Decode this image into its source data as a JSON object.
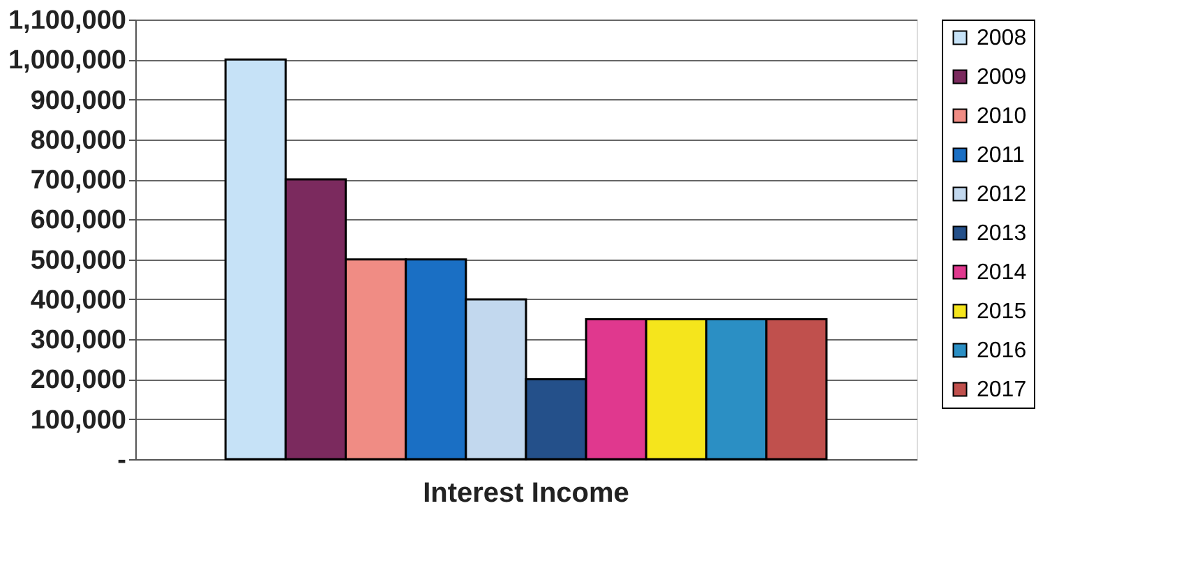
{
  "chart_data": {
    "type": "bar",
    "categories": [
      "Interest Income"
    ],
    "series": [
      {
        "name": "2008",
        "color": "#c6e2f7",
        "values": [
          1000000
        ]
      },
      {
        "name": "2009",
        "color": "#7b2a5e",
        "values": [
          700000
        ]
      },
      {
        "name": "2010",
        "color": "#f08c84",
        "values": [
          500000
        ]
      },
      {
        "name": "2011",
        "color": "#1a6fc4",
        "values": [
          500000
        ]
      },
      {
        "name": "2012",
        "color": "#c2d8ee",
        "values": [
          400000
        ]
      },
      {
        "name": "2013",
        "color": "#24508a",
        "values": [
          200000
        ]
      },
      {
        "name": "2014",
        "color": "#e0388e",
        "values": [
          350000
        ]
      },
      {
        "name": "2015",
        "color": "#f5e51c",
        "values": [
          350000
        ]
      },
      {
        "name": "2016",
        "color": "#2b8fc4",
        "values": [
          350000
        ]
      },
      {
        "name": "2017",
        "color": "#c0504d",
        "values": [
          350000
        ]
      }
    ],
    "ylim": [
      0,
      1100000
    ],
    "yticks": [
      {
        "value": 0,
        "label": "-"
      },
      {
        "value": 100000,
        "label": "100,000"
      },
      {
        "value": 200000,
        "label": "200,000"
      },
      {
        "value": 300000,
        "label": "300,000"
      },
      {
        "value": 400000,
        "label": "400,000"
      },
      {
        "value": 500000,
        "label": "500,000"
      },
      {
        "value": 600000,
        "label": "600,000"
      },
      {
        "value": 700000,
        "label": "700,000"
      },
      {
        "value": 800000,
        "label": "800,000"
      },
      {
        "value": 900000,
        "label": "900,000"
      },
      {
        "value": 1000000,
        "label": "1,000,000"
      },
      {
        "value": 1100000,
        "label": "1,100,000"
      }
    ],
    "grid": "y",
    "legend": "right"
  }
}
